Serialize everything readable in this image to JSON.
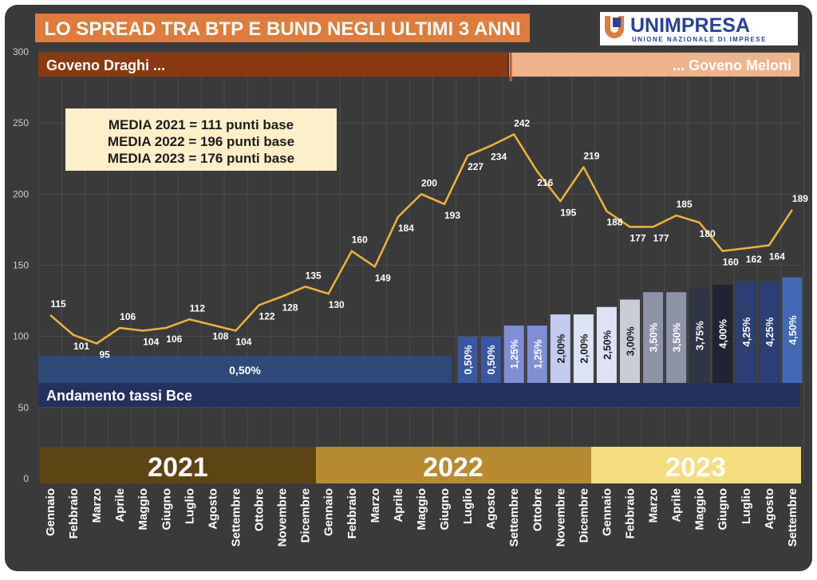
{
  "title": "LO SPREAD TRA BTP E BUND NEGLI ULTIMI 3 ANNI",
  "logo": {
    "name": "UNIMPRESA",
    "tagline": "UNIONE NAZIONALE DI IMPRESE"
  },
  "governments": {
    "left": "Goveno Draghi ...",
    "right": "... Goveno Meloni"
  },
  "averages": [
    "MEDIA 2021 = 111 punti base",
    "MEDIA 2022 = 196 punti base",
    "MEDIA 2023 = 176 punti base"
  ],
  "bce_label": "Andamento tassi Bce",
  "years": [
    "2021",
    "2022",
    "2023"
  ],
  "colors": {
    "background": "#3a3a3a",
    "title_bg": "#e07b39",
    "draghi": "#8b3a10",
    "meloni": "#f0b48a",
    "line": "#f0b33a",
    "bce_band": "#24305f",
    "year_2021": "#5e4414",
    "year_2022": "#b78a2f",
    "year_2023": "#f5dc7f"
  },
  "chart_data": {
    "type": "line",
    "categories": [
      "Gennaio",
      "Febbraio",
      "Marzo",
      "Aprile",
      "Maggio",
      "Giugno",
      "Luglio",
      "Agosto",
      "Settembre",
      "Ottobre",
      "Novembre",
      "Dicembre",
      "Gennaio",
      "Febbraio",
      "Marzo",
      "Aprile",
      "Maggio",
      "Giugno",
      "Luglio",
      "Agosto",
      "Settembre",
      "Ottobre",
      "Novembre",
      "Dicembre",
      "Gennaio",
      "Febbraio",
      "Marzo",
      "Aprile",
      "Maggio",
      "Giugno",
      "Luglio",
      "Agosto",
      "Settembre"
    ],
    "series": [
      {
        "values": [
          115,
          101,
          95,
          106,
          104,
          106,
          112,
          108,
          104,
          122,
          128,
          135,
          130,
          160,
          149,
          184,
          200,
          193,
          227,
          234,
          242,
          216,
          195,
          219,
          188,
          177,
          177,
          185,
          180,
          160,
          162,
          164,
          189
        ]
      }
    ],
    "ylim": [
      0,
      300
    ],
    "yticks": [
      0,
      50,
      100,
      150,
      200,
      250,
      300
    ],
    "bce_rates": {
      "baseline_label": "0,50%",
      "bars": [
        {
          "index": 18,
          "label": "0,50%",
          "value": 0.5,
          "color": "#3a57a2"
        },
        {
          "index": 19,
          "label": "0,50%",
          "value": 0.5,
          "color": "#3a57a2"
        },
        {
          "index": 20,
          "label": "1,25%",
          "value": 1.25,
          "color": "#7e8fd4"
        },
        {
          "index": 21,
          "label": "1,25%",
          "value": 1.25,
          "color": "#7e8fd4"
        },
        {
          "index": 22,
          "label": "2,00%",
          "value": 2.0,
          "color": "#c3cbf0"
        },
        {
          "index": 23,
          "label": "2,00%",
          "value": 2.0,
          "color": "#dde3f7"
        },
        {
          "index": 24,
          "label": "2,50%",
          "value": 2.5,
          "color": "#dde3f7"
        },
        {
          "index": 25,
          "label": "3,00%",
          "value": 3.0,
          "color": "#c9cdd8"
        },
        {
          "index": 26,
          "label": "3,50%",
          "value": 3.5,
          "color": "#8d94aa"
        },
        {
          "index": 27,
          "label": "3,50%",
          "value": 3.5,
          "color": "#8d94aa"
        },
        {
          "index": 28,
          "label": "3,75%",
          "value": 3.75,
          "color": "#2e3547"
        },
        {
          "index": 29,
          "label": "4,00%",
          "value": 4.0,
          "color": "#1f2433"
        },
        {
          "index": 30,
          "label": "4,25%",
          "value": 4.25,
          "color": "#2b3f72"
        },
        {
          "index": 31,
          "label": "4,25%",
          "value": 4.25,
          "color": "#2b3f72"
        },
        {
          "index": 32,
          "label": "4,50%",
          "value": 4.5,
          "color": "#4169b4"
        }
      ]
    },
    "government_change_index": 20
  }
}
